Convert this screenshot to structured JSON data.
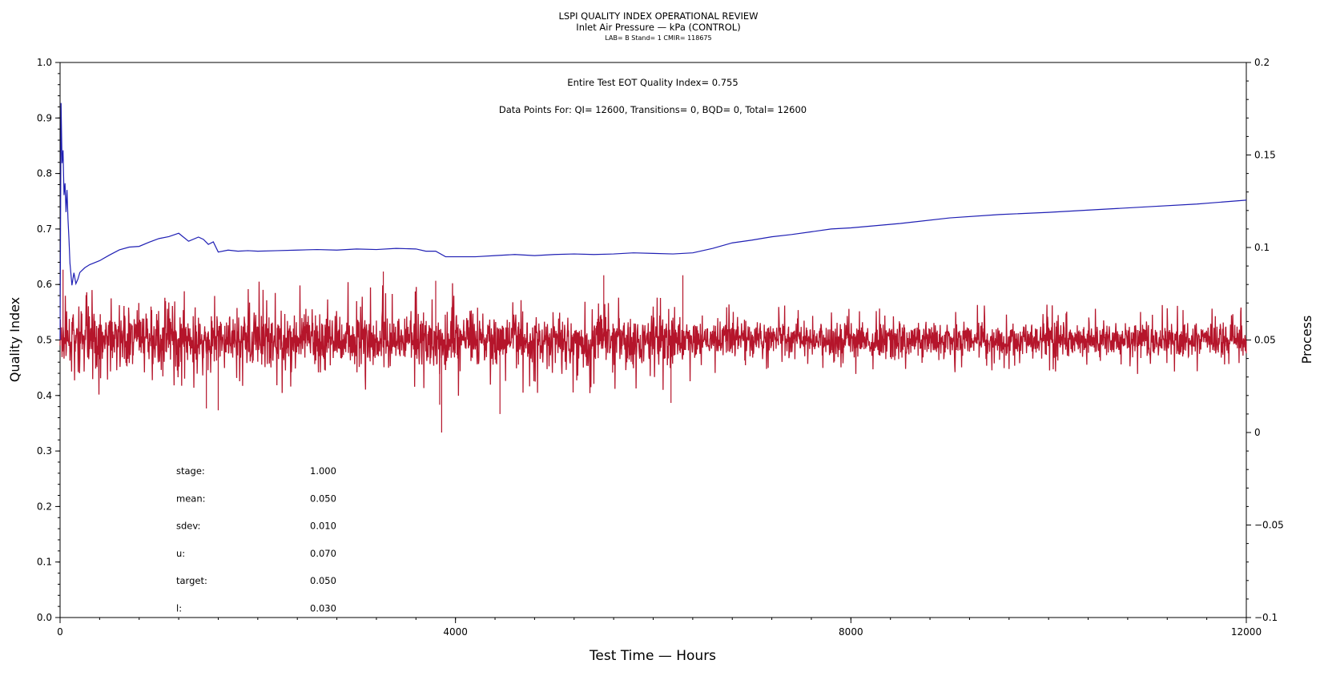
{
  "chart_data": {
    "type": "line",
    "title": "LSPI QUALITY INDEX OPERATIONAL REVIEW",
    "subtitle": "Inlet Air Pressure — kPa (CONTROL)",
    "subtitle2": "LAB= B Stand= 1 CMIR= 118675",
    "xlabel": "Test Time — Hours",
    "ylabel_left": "Quality Index",
    "ylabel_right": "Process",
    "xlim": [
      0,
      12000
    ],
    "ylim_left": [
      0,
      1.0
    ],
    "ylim_right": [
      -0.1,
      0.2
    ],
    "x_ticks": [
      {
        "v": 0,
        "label": "0"
      },
      {
        "v": 4000,
        "label": "4000"
      },
      {
        "v": 8000,
        "label": "8000"
      },
      {
        "v": 12000,
        "label": "12000"
      }
    ],
    "y_left_ticks": [
      {
        "v": 0.0,
        "label": "0.0"
      },
      {
        "v": 0.1,
        "label": "0.1"
      },
      {
        "v": 0.2,
        "label": "0.2"
      },
      {
        "v": 0.3,
        "label": "0.3"
      },
      {
        "v": 0.4,
        "label": "0.4"
      },
      {
        "v": 0.5,
        "label": "0.5"
      },
      {
        "v": 0.6,
        "label": "0.6"
      },
      {
        "v": 0.7,
        "label": "0.7"
      },
      {
        "v": 0.8,
        "label": "0.8"
      },
      {
        "v": 0.9,
        "label": "0.9"
      },
      {
        "v": 1.0,
        "label": "1.0"
      }
    ],
    "y_right_ticks": [
      {
        "v": -0.1,
        "label": "−0.1"
      },
      {
        "v": -0.05,
        "label": "−0.05"
      },
      {
        "v": 0,
        "label": "0"
      },
      {
        "v": 0.05,
        "label": "0.05"
      },
      {
        "v": 0.1,
        "label": "0.1"
      },
      {
        "v": 0.15,
        "label": "0.15"
      },
      {
        "v": 0.2,
        "label": "0.2"
      }
    ],
    "annotation_qi": "Entire Test EOT Quality Index=   0.755",
    "annotation_points": "Data Points For: QI= 12600, Transitions=     0, BQD=     0, Total= 12600",
    "stats": [
      {
        "label": "stage:",
        "value": "1.000"
      },
      {
        "label": "mean:",
        "value": "0.050"
      },
      {
        "label": "sdev:",
        "value": "0.010"
      },
      {
        "label": "u:",
        "value": "0.070"
      },
      {
        "label": "target:",
        "value": "0.050"
      },
      {
        "label": "l:",
        "value": "0.030"
      }
    ],
    "series": [
      {
        "axis": "left",
        "color": "#1f1fb4",
        "x": [
          0,
          10,
          20,
          30,
          40,
          50,
          60,
          70,
          80,
          90,
          100,
          120,
          140,
          160,
          180,
          200,
          250,
          300,
          400,
          500,
          600,
          700,
          800,
          900,
          1000,
          1100,
          1200,
          1300,
          1400,
          1450,
          1500,
          1550,
          1600,
          1700,
          1800,
          1900,
          2000,
          2200,
          2400,
          2600,
          2800,
          3000,
          3200,
          3400,
          3600,
          3700,
          3800,
          3900,
          4000,
          4200,
          4400,
          4600,
          4800,
          5000,
          5200,
          5400,
          5600,
          5800,
          6000,
          6200,
          6400,
          6600,
          6800,
          7000,
          7200,
          7400,
          7600,
          7800,
          8000,
          8500,
          9000,
          9500,
          10000,
          10500,
          11000,
          11500,
          12000
        ],
        "y": [
          0.5,
          0.93,
          0.82,
          0.84,
          0.76,
          0.78,
          0.73,
          0.77,
          0.72,
          0.68,
          0.64,
          0.6,
          0.62,
          0.6,
          0.61,
          0.62,
          0.63,
          0.635,
          0.64,
          0.655,
          0.66,
          0.665,
          0.67,
          0.675,
          0.68,
          0.685,
          0.69,
          0.678,
          0.685,
          0.68,
          0.67,
          0.675,
          0.66,
          0.662,
          0.66,
          0.661,
          0.66,
          0.661,
          0.662,
          0.663,
          0.662,
          0.664,
          0.663,
          0.665,
          0.664,
          0.66,
          0.66,
          0.65,
          0.65,
          0.65,
          0.652,
          0.654,
          0.652,
          0.654,
          0.655,
          0.654,
          0.655,
          0.657,
          0.656,
          0.655,
          0.657,
          0.665,
          0.675,
          0.68,
          0.686,
          0.69,
          0.695,
          0.7,
          0.702,
          0.71,
          0.72,
          0.726,
          0.73,
          0.735,
          0.74,
          0.745,
          0.752
        ]
      }
    ],
    "process_bands": {
      "axis": "right",
      "color": "#b5152b",
      "note": "noisy process trace oscillating about 0.05; envelope values in Process units",
      "x": [
        0,
        500,
        1000,
        1500,
        2000,
        2500,
        3000,
        3500,
        4000,
        4500,
        5000,
        5500,
        6000,
        6500,
        7000,
        7500,
        8000,
        8500,
        9000,
        9500,
        10000,
        10500,
        11000,
        11500,
        12000
      ],
      "upper": [
        0.067,
        0.07,
        0.07,
        0.068,
        0.07,
        0.069,
        0.07,
        0.068,
        0.07,
        0.069,
        0.069,
        0.068,
        0.068,
        0.063,
        0.062,
        0.062,
        0.062,
        0.062,
        0.062,
        0.062,
        0.062,
        0.062,
        0.062,
        0.062,
        0.062
      ],
      "lower": [
        0.033,
        0.031,
        0.03,
        0.032,
        0.031,
        0.031,
        0.031,
        0.031,
        0.031,
        0.031,
        0.032,
        0.031,
        0.031,
        0.037,
        0.038,
        0.038,
        0.038,
        0.038,
        0.038,
        0.038,
        0.038,
        0.038,
        0.038,
        0.038,
        0.038
      ],
      "peaks": [
        {
          "x": 30,
          "y": 0.088
        },
        {
          "x": 1480,
          "y": 0.013
        },
        {
          "x": 1600,
          "y": 0.012
        },
        {
          "x": 3270,
          "y": 0.087
        },
        {
          "x": 3800,
          "y": 0.082
        },
        {
          "x": 3840,
          "y": 0.015
        },
        {
          "x": 3860,
          "y": 0.0
        },
        {
          "x": 4450,
          "y": 0.01
        },
        {
          "x": 5500,
          "y": 0.085
        },
        {
          "x": 6180,
          "y": 0.016
        },
        {
          "x": 6300,
          "y": 0.085
        }
      ]
    }
  }
}
